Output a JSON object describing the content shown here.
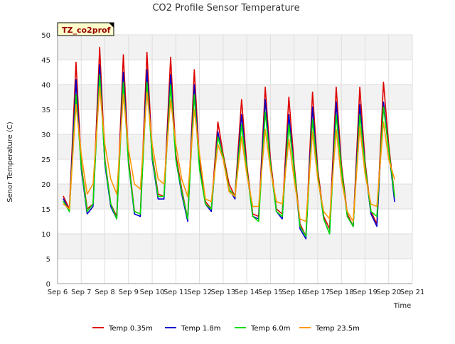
{
  "chart_data": {
    "type": "line",
    "title": "CO2 Profile Sensor Temperature",
    "xlabel": "Time",
    "ylabel": "Senor Temperature (C)",
    "badge": "TZ_co2prof",
    "xlim": [
      6,
      21
    ],
    "ylim": [
      0,
      50
    ],
    "x_ticks": [
      {
        "x": 6,
        "label": "Sep 6"
      },
      {
        "x": 7,
        "label": "Sep 7"
      },
      {
        "x": 8,
        "label": "Sep 8"
      },
      {
        "x": 9,
        "label": "Sep 9"
      },
      {
        "x": 10,
        "label": "Sep 10"
      },
      {
        "x": 11,
        "label": "Sep 11"
      },
      {
        "x": 12,
        "label": "Sep 12"
      },
      {
        "x": 13,
        "label": "Sep 13"
      },
      {
        "x": 14,
        "label": "Sep 14"
      },
      {
        "x": 15,
        "label": "Sep 15"
      },
      {
        "x": 16,
        "label": "Sep 16"
      },
      {
        "x": 17,
        "label": "Sep 17"
      },
      {
        "x": 18,
        "label": "Sep 18"
      },
      {
        "x": 19,
        "label": "Sep 19"
      },
      {
        "x": 20,
        "label": "Sep 20"
      },
      {
        "x": 21,
        "label": "Sep 21"
      }
    ],
    "y_ticks": [
      {
        "y": 0,
        "label": "0"
      },
      {
        "y": 5,
        "label": "5"
      },
      {
        "y": 10,
        "label": "10"
      },
      {
        "y": 15,
        "label": "15"
      },
      {
        "y": 20,
        "label": "20"
      },
      {
        "y": 25,
        "label": "25"
      },
      {
        "y": 30,
        "label": "30"
      },
      {
        "y": 35,
        "label": "35"
      },
      {
        "y": 40,
        "label": "40"
      },
      {
        "y": 45,
        "label": "45"
      },
      {
        "y": 50,
        "label": "50"
      }
    ],
    "grid": true,
    "legend_position": "bottom",
    "series": [
      {
        "name": "Temp 0.35m",
        "color": "#dd0000",
        "x": [
          6.25,
          6.5,
          6.78,
          7.0,
          7.25,
          7.5,
          7.78,
          8.0,
          8.25,
          8.5,
          8.78,
          9.0,
          9.25,
          9.5,
          9.78,
          10.0,
          10.25,
          10.5,
          10.78,
          11.0,
          11.25,
          11.5,
          11.78,
          12.0,
          12.25,
          12.5,
          12.78,
          13.0,
          13.25,
          13.5,
          13.78,
          14.0,
          14.25,
          14.5,
          14.78,
          15.0,
          15.25,
          15.5,
          15.78,
          16.0,
          16.25,
          16.5,
          16.78,
          17.0,
          17.25,
          17.5,
          17.78,
          18.0,
          18.25,
          18.5,
          18.78,
          19.0,
          19.25,
          19.5,
          19.78,
          20.0,
          20.25
        ],
        "y": [
          17.5,
          15.0,
          44.5,
          24.0,
          15.0,
          16.0,
          47.5,
          25.0,
          16.0,
          13.5,
          46.0,
          25.0,
          14.5,
          14.0,
          46.5,
          26.0,
          18.0,
          17.5,
          45.5,
          26.0,
          19.0,
          13.0,
          43.0,
          24.5,
          16.5,
          15.0,
          32.5,
          26.0,
          20.0,
          17.5,
          37.0,
          24.0,
          14.0,
          13.5,
          39.5,
          25.0,
          15.0,
          14.0,
          37.5,
          24.0,
          12.0,
          9.5,
          38.5,
          23.0,
          13.5,
          11.0,
          39.5,
          24.0,
          14.0,
          11.5,
          39.5,
          24.5,
          14.5,
          12.0,
          40.5,
          28.0,
          17.5
        ]
      },
      {
        "name": "Temp 1.8m",
        "color": "#0000cc",
        "x": [
          6.25,
          6.5,
          6.78,
          7.0,
          7.25,
          7.5,
          7.78,
          8.0,
          8.25,
          8.5,
          8.78,
          9.0,
          9.25,
          9.5,
          9.78,
          10.0,
          10.25,
          10.5,
          10.78,
          11.0,
          11.25,
          11.5,
          11.78,
          12.0,
          12.25,
          12.5,
          12.78,
          13.0,
          13.25,
          13.5,
          13.78,
          14.0,
          14.25,
          14.5,
          14.78,
          15.0,
          15.25,
          15.5,
          15.78,
          16.0,
          16.25,
          16.5,
          16.78,
          17.0,
          17.25,
          17.5,
          17.78,
          18.0,
          18.25,
          18.5,
          18.78,
          19.0,
          19.25,
          19.5,
          19.78,
          20.0,
          20.25
        ],
        "y": [
          17.0,
          14.5,
          41.0,
          23.0,
          14.0,
          15.5,
          44.0,
          24.0,
          15.5,
          13.0,
          42.5,
          24.0,
          14.0,
          13.5,
          43.0,
          25.0,
          17.0,
          17.0,
          42.0,
          25.0,
          18.0,
          12.5,
          40.0,
          23.5,
          16.0,
          14.5,
          30.5,
          25.0,
          19.0,
          17.0,
          34.0,
          23.0,
          13.5,
          13.0,
          37.0,
          24.0,
          14.5,
          13.0,
          34.0,
          23.0,
          11.0,
          9.0,
          35.5,
          22.0,
          13.0,
          10.0,
          36.5,
          23.0,
          13.5,
          11.5,
          36.0,
          23.5,
          14.0,
          11.5,
          36.5,
          27.0,
          16.5
        ]
      },
      {
        "name": "Temp 6.0m",
        "color": "#00dd00",
        "x": [
          6.25,
          6.5,
          6.78,
          7.0,
          7.25,
          7.5,
          7.78,
          8.0,
          8.25,
          8.5,
          8.78,
          9.0,
          9.25,
          9.5,
          9.78,
          10.0,
          10.25,
          10.5,
          10.78,
          11.0,
          11.25,
          11.5,
          11.78,
          12.0,
          12.25,
          12.5,
          12.78,
          13.0,
          13.25,
          13.5,
          13.78,
          14.0,
          14.25,
          14.5,
          14.78,
          15.0,
          15.25,
          15.5,
          15.78,
          16.0,
          16.25,
          16.5,
          16.78,
          17.0,
          17.25,
          17.5,
          17.78,
          18.0,
          18.25,
          18.5,
          18.78,
          19.0,
          19.25,
          19.5,
          19.78,
          20.0,
          20.25
        ],
        "y": [
          16.5,
          14.5,
          38.0,
          23.5,
          14.5,
          16.0,
          42.0,
          24.5,
          16.0,
          13.0,
          40.5,
          24.0,
          14.5,
          14.0,
          40.5,
          25.5,
          17.5,
          17.5,
          40.0,
          25.0,
          18.5,
          13.0,
          38.0,
          23.0,
          16.0,
          15.0,
          29.5,
          25.5,
          19.0,
          17.5,
          32.0,
          23.0,
          13.5,
          12.5,
          34.5,
          24.0,
          14.5,
          13.5,
          32.0,
          23.0,
          11.5,
          9.5,
          33.0,
          22.0,
          13.0,
          10.0,
          34.0,
          23.0,
          13.5,
          11.5,
          34.0,
          23.5,
          14.5,
          13.5,
          35.5,
          27.0,
          17.5
        ]
      },
      {
        "name": "Temp 23.5m",
        "color": "#ff9900",
        "x": [
          6.25,
          6.5,
          6.78,
          7.0,
          7.25,
          7.5,
          7.78,
          8.0,
          8.25,
          8.5,
          8.78,
          9.0,
          9.25,
          9.5,
          9.78,
          10.0,
          10.25,
          10.5,
          10.78,
          11.0,
          11.25,
          11.5,
          11.78,
          12.0,
          12.25,
          12.5,
          12.78,
          13.0,
          13.25,
          13.5,
          13.78,
          14.0,
          14.25,
          14.5,
          14.78,
          15.0,
          15.25,
          15.5,
          15.78,
          16.0,
          16.25,
          16.5,
          16.78,
          17.0,
          17.25,
          17.5,
          17.78,
          18.0,
          18.25,
          18.5,
          18.78,
          19.0,
          19.25,
          19.5,
          19.78,
          20.0,
          20.25
        ],
        "y": [
          16.0,
          15.0,
          36.0,
          26.0,
          18.0,
          20.0,
          39.5,
          28.0,
          21.0,
          18.0,
          38.0,
          27.0,
          20.0,
          19.0,
          38.5,
          28.0,
          21.0,
          20.0,
          37.0,
          28.0,
          21.0,
          17.5,
          35.0,
          26.0,
          17.0,
          16.5,
          28.0,
          25.0,
          18.5,
          17.5,
          29.5,
          22.0,
          15.5,
          15.5,
          31.0,
          23.0,
          16.5,
          16.0,
          29.0,
          21.0,
          13.0,
          12.5,
          30.5,
          21.0,
          14.5,
          13.0,
          31.0,
          21.0,
          14.5,
          12.5,
          31.5,
          22.0,
          16.0,
          15.5,
          32.5,
          25.0,
          21.0
        ]
      }
    ]
  }
}
